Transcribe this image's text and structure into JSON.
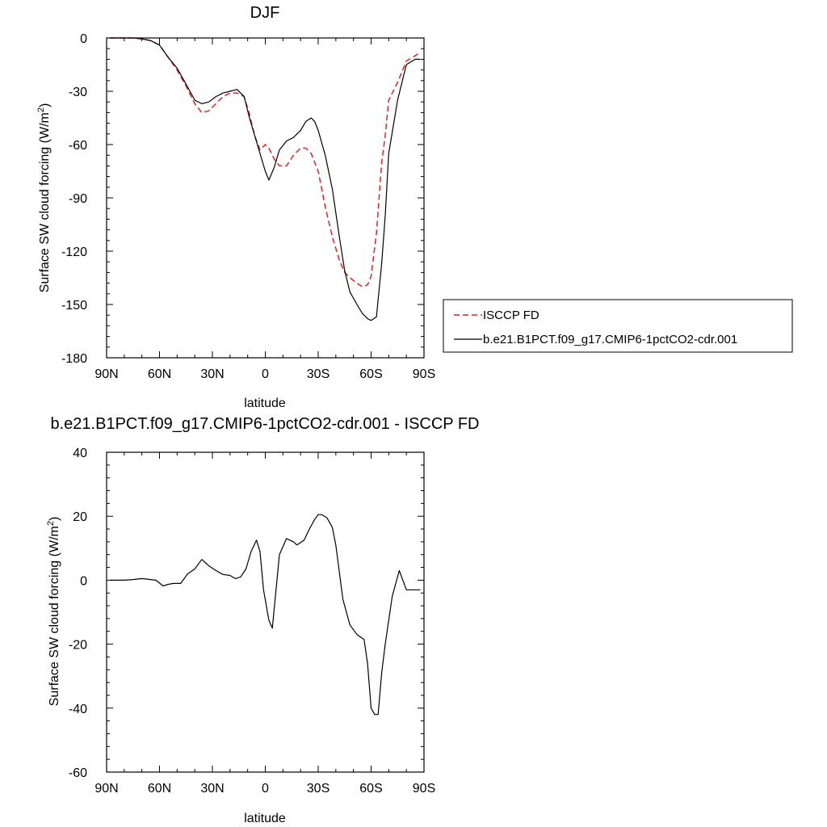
{
  "chart_data": [
    {
      "type": "line",
      "title": "DJF",
      "xlabel": "latitude",
      "ylabel_main": "Surface SW cloud forcing (W/m",
      "ylabel_sup": "2",
      "ylabel_close": ")",
      "xlim": [
        -90,
        90
      ],
      "ylim": [
        -180,
        0
      ],
      "xticks": [
        -90,
        -60,
        -30,
        0,
        30,
        60,
        90
      ],
      "xtick_labels": [
        "90N",
        "60N",
        "30N",
        "0",
        "30S",
        "60S",
        "90S"
      ],
      "yticks": [
        0,
        -30,
        -60,
        -90,
        -120,
        -150,
        -180
      ],
      "ytick_labels": [
        "0",
        "-30",
        "-60",
        "-90",
        "-120",
        "-150",
        "-180"
      ],
      "legend_position": "right",
      "series": [
        {
          "name": "ISCCP FD",
          "color": "#e8201f",
          "dash": "dashed",
          "x": [
            -88,
            -80,
            -75,
            -70,
            -65,
            -60,
            -55,
            -50,
            -45,
            -40,
            -36,
            -32,
            -28,
            -24,
            -20,
            -16,
            -12,
            -9,
            -6,
            -3,
            0,
            2,
            5,
            8,
            12,
            16,
            20,
            23,
            26,
            30,
            34,
            38,
            42,
            45,
            48,
            52,
            55,
            58,
            60,
            63,
            66,
            68,
            70,
            75,
            80,
            85,
            88
          ],
          "y": [
            0,
            0,
            0,
            -0.5,
            -1.5,
            -4,
            -11,
            -18,
            -27,
            -37,
            -42,
            -41,
            -37,
            -33,
            -31,
            -31,
            -33,
            -43,
            -55,
            -63,
            -60,
            -62,
            -68,
            -72,
            -72,
            -66,
            -62,
            -62,
            -65,
            -75,
            -95,
            -112,
            -125,
            -132,
            -135,
            -138,
            -140,
            -139,
            -134,
            -110,
            -70,
            -55,
            -35,
            -25,
            -13,
            -10,
            -8
          ]
        },
        {
          "name": "b.e21.B1PCT.f09_g17.CMIP6-1pctCO2-cdr.001",
          "color": "#000000",
          "dash": "solid",
          "x": [
            -88,
            -80,
            -75,
            -70,
            -65,
            -60,
            -55,
            -50,
            -45,
            -40,
            -36,
            -32,
            -28,
            -24,
            -20,
            -16,
            -12,
            -9,
            -6,
            -3,
            0,
            2,
            5,
            8,
            12,
            16,
            20,
            23,
            26,
            28,
            30,
            34,
            38,
            42,
            45,
            48,
            52,
            55,
            58,
            60,
            63,
            66,
            68,
            70,
            75,
            80,
            85,
            88
          ],
          "y": [
            0,
            0,
            0,
            -0.5,
            -1.5,
            -4,
            -11,
            -17,
            -26,
            -35,
            -37,
            -36,
            -33,
            -31,
            -30,
            -29,
            -33,
            -45,
            -55,
            -65,
            -75,
            -80,
            -73,
            -63,
            -58,
            -56,
            -52,
            -47,
            -45,
            -47,
            -52,
            -66,
            -85,
            -112,
            -131,
            -143,
            -150,
            -155,
            -158,
            -159,
            -157,
            -127,
            -100,
            -65,
            -35,
            -15,
            -12,
            -12
          ]
        }
      ]
    },
    {
      "type": "line",
      "title": "b.e21.B1PCT.f09_g17.CMIP6-1pctCO2-cdr.001 - ISCCP FD",
      "xlabel": "latitude",
      "ylabel_main": "Surface SW cloud forcing (W/m",
      "ylabel_sup": "2",
      "ylabel_close": ")",
      "xlim": [
        -90,
        90
      ],
      "ylim": [
        -60,
        40
      ],
      "xticks": [
        -90,
        -60,
        -30,
        0,
        30,
        60,
        90
      ],
      "xtick_labels": [
        "90N",
        "60N",
        "30N",
        "0",
        "30S",
        "60S",
        "90S"
      ],
      "yticks": [
        40,
        20,
        0,
        -20,
        -40,
        -60
      ],
      "ytick_labels": [
        "40",
        "20",
        "0",
        "-20",
        "-40",
        "-60"
      ],
      "series": [
        {
          "color": "#000000",
          "dash": "solid",
          "x": [
            -88,
            -80,
            -75,
            -70,
            -65,
            -62,
            -58,
            -55,
            -52,
            -48,
            -44,
            -40,
            -36,
            -32,
            -28,
            -24,
            -20,
            -17,
            -14,
            -11,
            -8,
            -5,
            -3,
            -1,
            2,
            4,
            8,
            12,
            16,
            18,
            22,
            25,
            28,
            30,
            32,
            35,
            38,
            40,
            44,
            48,
            52,
            56,
            58,
            60,
            62,
            64,
            66,
            68,
            72,
            76,
            80,
            84,
            88
          ],
          "y": [
            0,
            0,
            0.2,
            0.5,
            0.2,
            0,
            -1.8,
            -1.3,
            -1.0,
            -1.0,
            2,
            3.5,
            6.5,
            4.5,
            3,
            1.8,
            1.5,
            0.5,
            1,
            3.5,
            9,
            12.5,
            9,
            -3,
            -12.5,
            -15,
            8,
            13,
            12,
            11,
            12.5,
            16,
            19,
            20.5,
            20.5,
            19.5,
            16.5,
            11,
            -6,
            -14,
            -17,
            -18.5,
            -26,
            -40,
            -42,
            -42,
            -29,
            -20,
            -5,
            3,
            -3,
            -3,
            -3
          ]
        }
      ]
    }
  ]
}
